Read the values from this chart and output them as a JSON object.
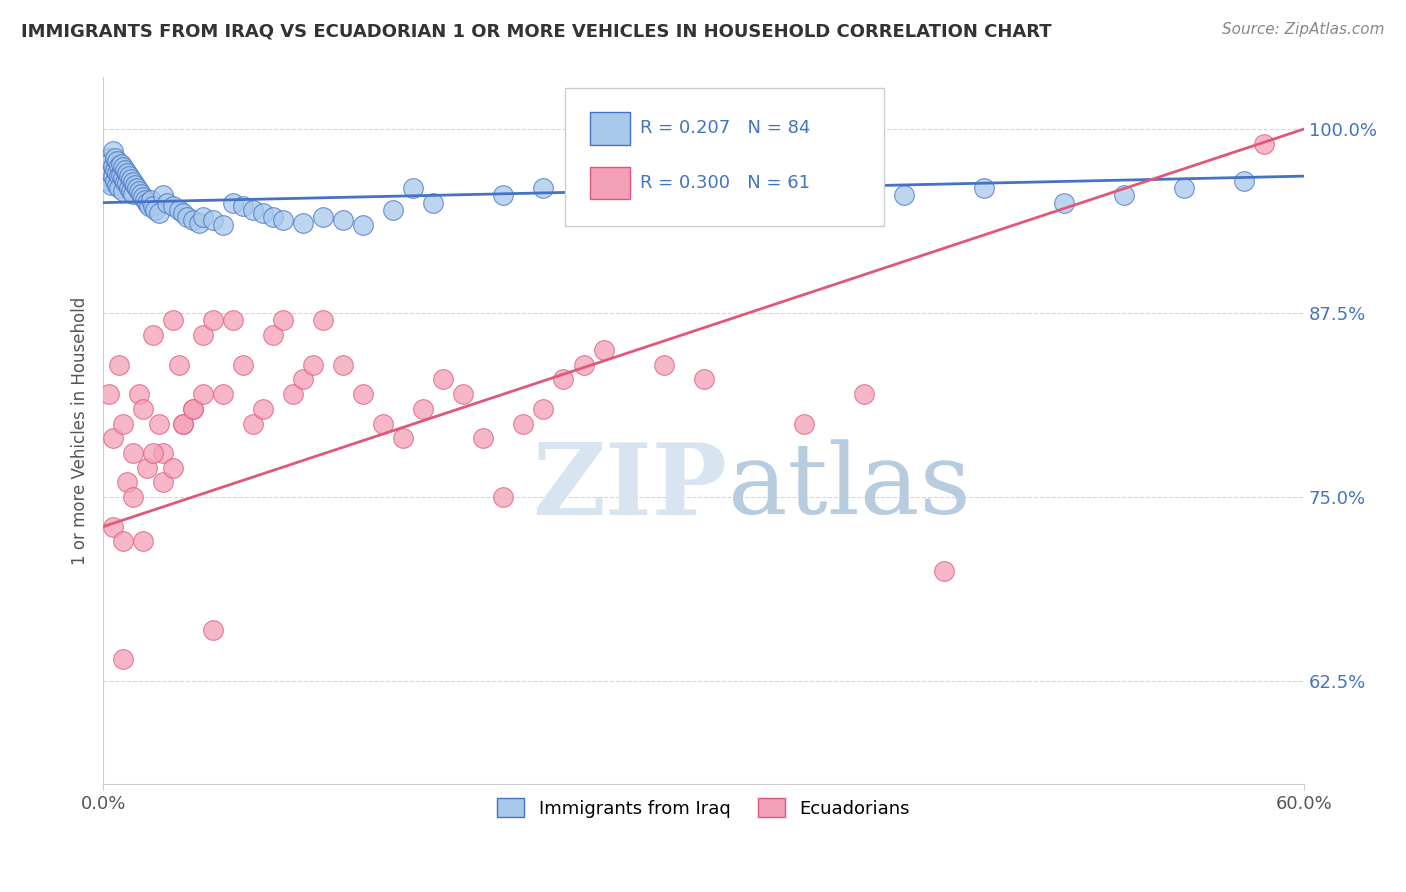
{
  "title": "IMMIGRANTS FROM IRAQ VS ECUADORIAN 1 OR MORE VEHICLES IN HOUSEHOLD CORRELATION CHART",
  "source": "Source: ZipAtlas.com",
  "xlabel_blue": "Immigrants from Iraq",
  "xlabel_pink": "Ecuadorians",
  "ylabel": "1 or more Vehicles in Household",
  "R_blue": 0.207,
  "N_blue": 84,
  "R_pink": 0.3,
  "N_pink": 61,
  "blue_color": "#A8C8EC",
  "pink_color": "#F4A0B8",
  "blue_line_color": "#4472C4",
  "pink_line_color": "#E05878",
  "xmin": 0.0,
  "xmax": 0.6,
  "ymin": 0.555,
  "ymax": 1.035,
  "yticks": [
    0.625,
    0.75,
    0.875,
    1.0
  ],
  "ytick_labels": [
    "62.5%",
    "75.0%",
    "87.5%",
    "100.0%"
  ],
  "blue_line_y0": 0.95,
  "blue_line_y1": 0.968,
  "pink_line_y0": 0.73,
  "pink_line_y1": 1.0,
  "blue_scatter_x": [
    0.001,
    0.002,
    0.002,
    0.003,
    0.003,
    0.003,
    0.004,
    0.004,
    0.004,
    0.005,
    0.005,
    0.005,
    0.006,
    0.006,
    0.006,
    0.007,
    0.007,
    0.007,
    0.008,
    0.008,
    0.008,
    0.009,
    0.009,
    0.01,
    0.01,
    0.01,
    0.011,
    0.011,
    0.012,
    0.012,
    0.013,
    0.013,
    0.014,
    0.014,
    0.015,
    0.015,
    0.016,
    0.017,
    0.018,
    0.019,
    0.02,
    0.021,
    0.022,
    0.023,
    0.024,
    0.025,
    0.026,
    0.028,
    0.03,
    0.032,
    0.035,
    0.038,
    0.04,
    0.042,
    0.045,
    0.048,
    0.05,
    0.055,
    0.06,
    0.065,
    0.07,
    0.075,
    0.08,
    0.085,
    0.09,
    0.1,
    0.11,
    0.12,
    0.13,
    0.145,
    0.155,
    0.165,
    0.2,
    0.22,
    0.27,
    0.29,
    0.32,
    0.36,
    0.4,
    0.44,
    0.48,
    0.51,
    0.54,
    0.57
  ],
  "blue_scatter_y": [
    0.975,
    0.97,
    0.968,
    0.98,
    0.972,
    0.965,
    0.978,
    0.97,
    0.962,
    0.985,
    0.975,
    0.968,
    0.98,
    0.972,
    0.965,
    0.978,
    0.97,
    0.962,
    0.975,
    0.968,
    0.96,
    0.976,
    0.969,
    0.974,
    0.967,
    0.958,
    0.972,
    0.964,
    0.97,
    0.963,
    0.968,
    0.96,
    0.966,
    0.958,
    0.964,
    0.956,
    0.962,
    0.96,
    0.958,
    0.956,
    0.954,
    0.952,
    0.95,
    0.948,
    0.952,
    0.948,
    0.945,
    0.943,
    0.955,
    0.95,
    0.948,
    0.945,
    0.943,
    0.94,
    0.938,
    0.936,
    0.94,
    0.938,
    0.935,
    0.95,
    0.948,
    0.945,
    0.943,
    0.94,
    0.938,
    0.936,
    0.94,
    0.938,
    0.935,
    0.945,
    0.96,
    0.95,
    0.955,
    0.96,
    0.95,
    0.955,
    0.96,
    0.95,
    0.955,
    0.96,
    0.95,
    0.955,
    0.96,
    0.965
  ],
  "pink_scatter_x": [
    0.003,
    0.005,
    0.008,
    0.01,
    0.012,
    0.015,
    0.018,
    0.02,
    0.022,
    0.025,
    0.028,
    0.03,
    0.035,
    0.038,
    0.04,
    0.045,
    0.05,
    0.055,
    0.06,
    0.065,
    0.07,
    0.075,
    0.08,
    0.085,
    0.09,
    0.095,
    0.1,
    0.105,
    0.11,
    0.12,
    0.13,
    0.14,
    0.15,
    0.16,
    0.17,
    0.18,
    0.19,
    0.2,
    0.21,
    0.22,
    0.23,
    0.24,
    0.25,
    0.28,
    0.3,
    0.35,
    0.38,
    0.42,
    0.005,
    0.01,
    0.015,
    0.02,
    0.025,
    0.03,
    0.035,
    0.04,
    0.045,
    0.05,
    0.055,
    0.01,
    0.58
  ],
  "pink_scatter_y": [
    0.82,
    0.79,
    0.84,
    0.8,
    0.76,
    0.78,
    0.82,
    0.81,
    0.77,
    0.86,
    0.8,
    0.78,
    0.87,
    0.84,
    0.8,
    0.81,
    0.86,
    0.87,
    0.82,
    0.87,
    0.84,
    0.8,
    0.81,
    0.86,
    0.87,
    0.82,
    0.83,
    0.84,
    0.87,
    0.84,
    0.82,
    0.8,
    0.79,
    0.81,
    0.83,
    0.82,
    0.79,
    0.75,
    0.8,
    0.81,
    0.83,
    0.84,
    0.85,
    0.84,
    0.83,
    0.8,
    0.82,
    0.7,
    0.73,
    0.72,
    0.75,
    0.72,
    0.78,
    0.76,
    0.77,
    0.8,
    0.81,
    0.82,
    0.66,
    0.64,
    0.99
  ],
  "watermark_zip": "ZIP",
  "watermark_atlas": "atlas",
  "background_color": "#FFFFFF",
  "grid_color": "#CCCCCC"
}
